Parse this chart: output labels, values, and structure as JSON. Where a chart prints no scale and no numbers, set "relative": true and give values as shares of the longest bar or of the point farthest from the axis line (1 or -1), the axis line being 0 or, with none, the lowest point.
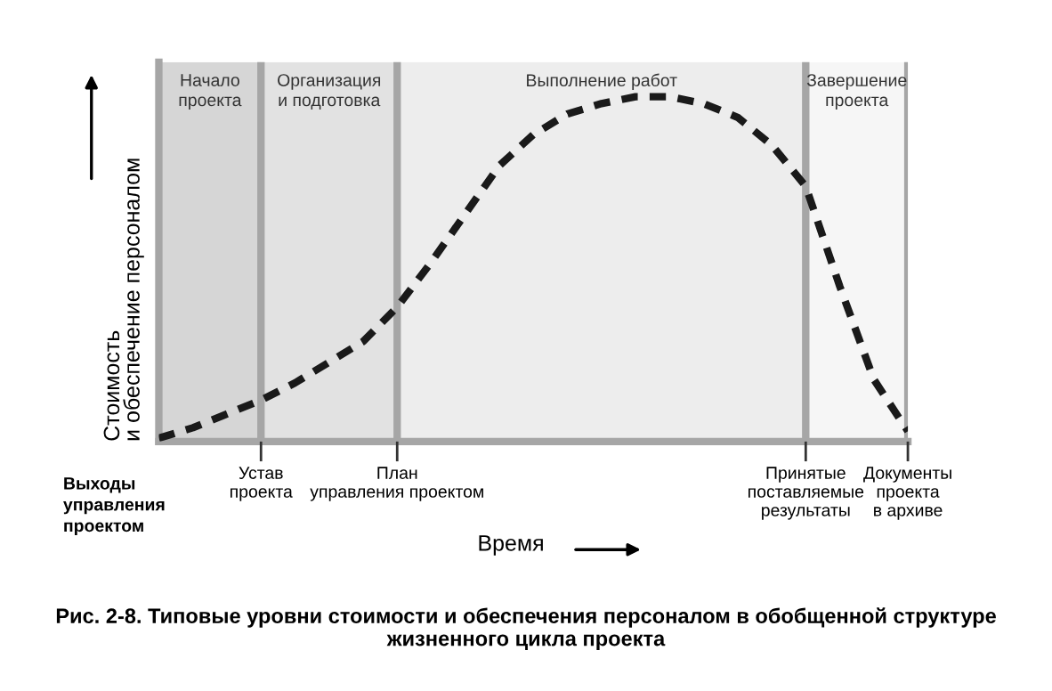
{
  "chart_data": {
    "type": "line",
    "relative": true,
    "title": "Рис. 2-8. Типовые уровни стоимости и обеспечения персоналом в обобщенной структуре жизненного цикла проекта",
    "xlabel": "Время",
    "ylabel": "Стоимость\nи обеспечение персоналом",
    "categories": [
      null,
      null,
      null,
      "Устав\nпроекта",
      null,
      null,
      null,
      "План\nуправления проектом",
      null,
      null,
      null,
      null,
      null,
      null,
      null,
      null,
      null,
      null,
      null,
      "Принятые\nпоставляемые\nрезультаты",
      null,
      null,
      "Документы\nпроекта\nв архиве"
    ],
    "series": [
      {
        "color": "#1a1a1a",
        "values": [
          0.01,
          0.04,
          0.08,
          0.12,
          0.17,
          0.23,
          0.29,
          0.39,
          0.52,
          0.66,
          0.8,
          0.89,
          0.95,
          0.98,
          1,
          1,
          0.98,
          0.94,
          0.86,
          0.74,
          0.45,
          0.18,
          0.03
        ]
      }
    ],
    "line_style": "dashed",
    "marker": "none",
    "grid": "x",
    "annotations": [
      "Выходы\nуправления\nпроектом",
      "Начало\nпроекта",
      "Организация\nи подготовка",
      "Выполнение работ",
      "Завершение\nпроекта"
    ]
  }
}
